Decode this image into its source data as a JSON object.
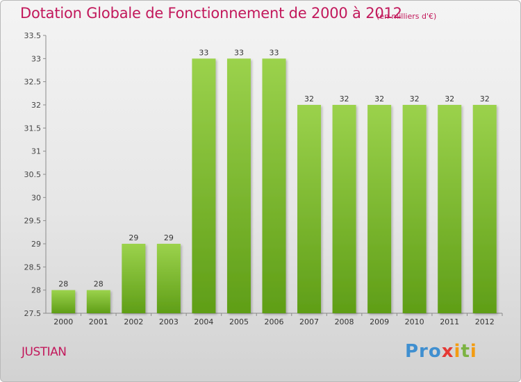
{
  "header": {
    "title": "Dotation Globale de Fonctionnement de 2000 à 2012",
    "unit": "(en milliers d'€)"
  },
  "footer": {
    "commune": "JUSTIAN",
    "logo": {
      "p1": "Pro",
      "p2": "x",
      "p3": "i",
      "p4": "t",
      "p5": "i"
    }
  },
  "colors": {
    "title": "#c2185b",
    "bar_light": "#9bd24c",
    "bar_dark": "#5f9e17"
  },
  "chart_data": {
    "type": "bar",
    "title": "Dotation Globale de Fonctionnement de 2000 à 2012",
    "subtitle": "(en milliers d'€)",
    "xlabel": "",
    "ylabel": "",
    "categories": [
      "2000",
      "2001",
      "2002",
      "2003",
      "2004",
      "2005",
      "2006",
      "2007",
      "2008",
      "2009",
      "2010",
      "2011",
      "2012"
    ],
    "values": [
      28,
      28,
      29,
      29,
      33,
      33,
      33,
      32,
      32,
      32,
      32,
      32,
      32
    ],
    "data_labels": [
      "28",
      "28",
      "29",
      "29",
      "33",
      "33",
      "33",
      "32",
      "32",
      "32",
      "32",
      "32",
      "32"
    ],
    "ylim": [
      27.5,
      33.5
    ],
    "yticks": [
      "27.5",
      "28",
      "28.5",
      "29",
      "29.5",
      "30",
      "30.5",
      "31",
      "31.5",
      "32",
      "32.5",
      "33",
      "33.5"
    ],
    "grid": false,
    "legend": "none"
  }
}
